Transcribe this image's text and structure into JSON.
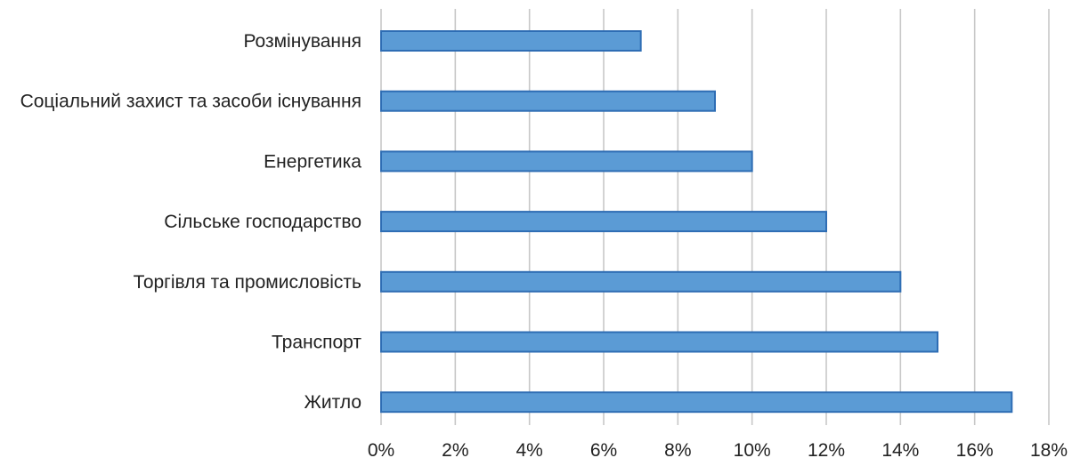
{
  "chart_data": {
    "type": "bar",
    "orientation": "horizontal",
    "categories": [
      "Розмінування",
      "Соціальний захист та засоби існування",
      "Енергетика",
      "Сільське господарство",
      "Торгівля та промисловість",
      "Транспорт",
      "Житло"
    ],
    "values": [
      7,
      9,
      10,
      12,
      14,
      15,
      17
    ],
    "xlim": [
      0,
      18
    ],
    "x_ticks": [
      0,
      2,
      4,
      6,
      8,
      10,
      12,
      14,
      16,
      18
    ],
    "tick_suffix": "%",
    "grid": "vertical",
    "legend": "none",
    "title": "",
    "xlabel": "",
    "ylabel": "",
    "colors": {
      "bar_fill": "#5b9bd5",
      "bar_stroke": "#2e6db4",
      "grid": "#c8c8c8",
      "text": "#222222"
    }
  }
}
